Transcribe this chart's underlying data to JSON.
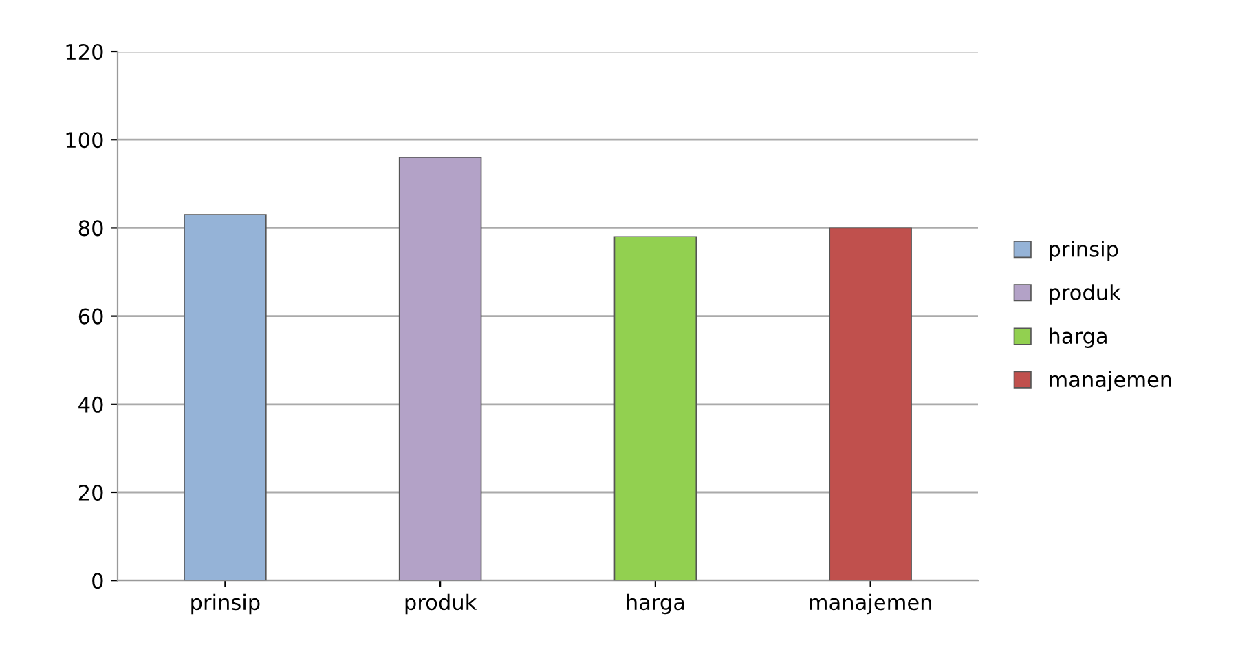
{
  "chart_data": {
    "type": "bar",
    "categories": [
      "prinsip",
      "produk",
      "harga",
      "manajemen"
    ],
    "series": [
      {
        "name": "prinsip",
        "color": "#95b3d7",
        "values": [
          83,
          null,
          null,
          null
        ]
      },
      {
        "name": "produk",
        "color": "#b3a2c7",
        "values": [
          null,
          96,
          null,
          null
        ]
      },
      {
        "name": "harga",
        "color": "#92d050",
        "values": [
          null,
          null,
          78,
          null
        ]
      },
      {
        "name": "manajemen",
        "color": "#c0504d",
        "values": [
          null,
          null,
          null,
          80
        ]
      }
    ],
    "ylim": [
      0,
      120
    ],
    "yticks": [
      0,
      20,
      40,
      60,
      80,
      100,
      120
    ],
    "grid": "y",
    "legend": "right"
  }
}
